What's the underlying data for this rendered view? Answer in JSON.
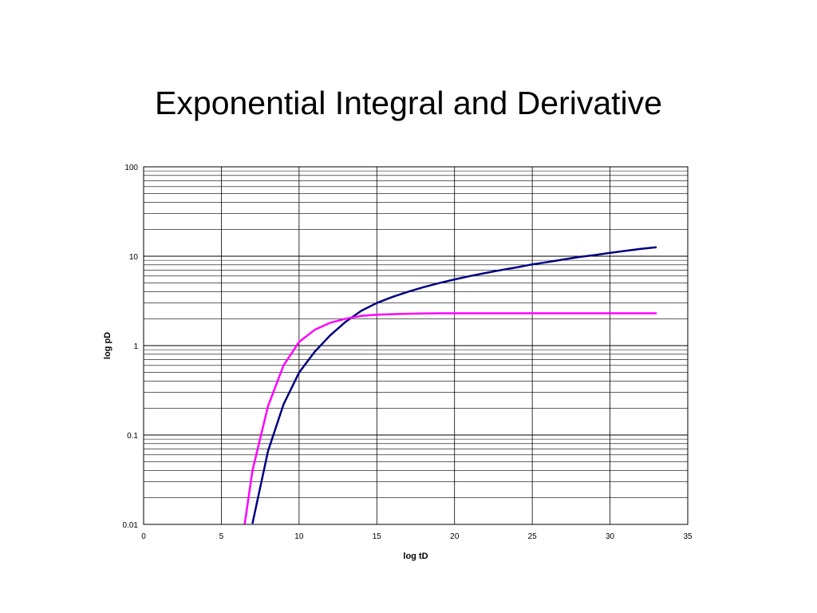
{
  "slide": {
    "title": "Exponential Integral and Derivative"
  },
  "chart_data": {
    "type": "line",
    "title": "",
    "xlabel": "log tD",
    "ylabel": "log pD",
    "xlim": [
      0,
      35
    ],
    "ylim": [
      0.01,
      100
    ],
    "y_scale": "log",
    "grid": true,
    "legend": "none",
    "x_ticks": [
      "0",
      "5",
      "10",
      "15",
      "20",
      "25",
      "30",
      "35"
    ],
    "y_ticks": [
      "100",
      "10",
      "1",
      "0.1",
      "0.01"
    ],
    "series": [
      {
        "color": "#000080",
        "x": [
          7,
          8,
          9,
          10,
          11,
          12,
          13,
          14,
          15,
          16,
          17,
          18,
          19,
          20,
          21,
          22,
          23,
          24,
          25,
          26,
          27,
          28,
          29,
          30,
          31,
          32,
          33
        ],
        "y": [
          0.0102,
          0.066,
          0.22,
          0.5,
          0.85,
          1.3,
          1.85,
          2.45,
          3.0,
          3.5,
          4.0,
          4.5,
          5.0,
          5.5,
          6.0,
          6.5,
          7.0,
          7.5,
          8.1,
          8.6,
          9.2,
          9.8,
          10.3,
          10.9,
          11.5,
          12.1,
          12.6
        ]
      },
      {
        "color": "#ff00ff",
        "x": [
          6.5,
          7,
          8,
          9,
          10,
          11,
          12,
          13,
          14,
          15,
          16,
          17,
          18,
          19,
          20,
          21,
          22,
          23,
          24,
          25,
          26,
          27,
          28,
          29,
          30,
          31,
          32,
          33
        ],
        "y": [
          0.0101,
          0.04,
          0.21,
          0.6,
          1.1,
          1.5,
          1.8,
          2.0,
          2.15,
          2.22,
          2.25,
          2.27,
          2.29,
          2.3,
          2.3,
          2.3,
          2.3,
          2.3,
          2.3,
          2.3,
          2.3,
          2.3,
          2.3,
          2.3,
          2.3,
          2.3,
          2.3,
          2.3
        ]
      }
    ]
  }
}
